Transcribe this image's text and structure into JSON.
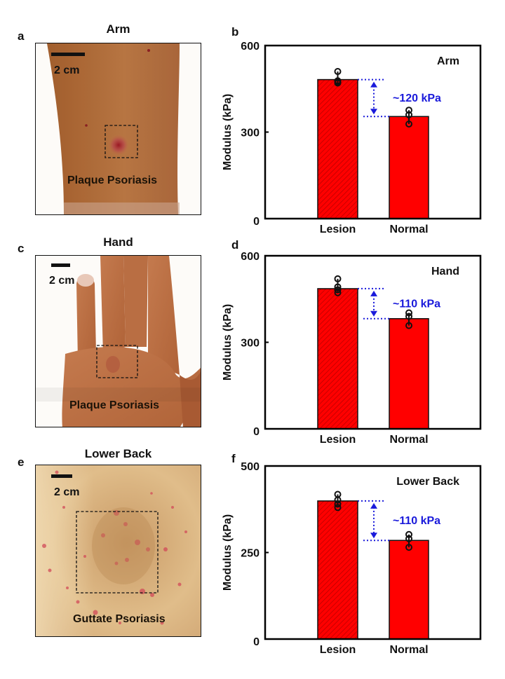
{
  "panels": {
    "a": {
      "letter": "a",
      "title": "Arm",
      "scale_bar": "2 cm",
      "condition": "Plaque Psoriasis"
    },
    "c": {
      "letter": "c",
      "title": "Hand",
      "scale_bar": "2 cm",
      "condition": "Plaque Psoriasis"
    },
    "e": {
      "letter": "e",
      "title": "Lower Back",
      "scale_bar": "2 cm",
      "condition": "Guttate Psoriasis"
    },
    "b": {
      "letter": "b"
    },
    "d": {
      "letter": "d"
    },
    "f": {
      "letter": "f"
    }
  },
  "colors": {
    "bar_fill": "#ff0000",
    "bar_hatch": "#b00000",
    "annotation": "#1a1adb",
    "axis": "#000000"
  },
  "chart_data": [
    {
      "panel": "b",
      "type": "bar",
      "title": "Arm",
      "ylabel": "Modulus (kPa)",
      "xlabel": "",
      "categories": [
        "Lesion",
        "Normal"
      ],
      "values": [
        482,
        354
      ],
      "points": [
        [
          510,
          478,
          474,
          470
        ],
        [
          376,
          360,
          328
        ]
      ],
      "ylim": [
        0,
        600
      ],
      "yticks": [
        0,
        300,
        600
      ],
      "annotation": "~120 kPa",
      "grid": false
    },
    {
      "panel": "d",
      "type": "bar",
      "title": "Hand",
      "ylabel": "Modulus (kPa)",
      "xlabel": "",
      "categories": [
        "Lesion",
        "Normal"
      ],
      "values": [
        486,
        382
      ],
      "points": [
        [
          520,
          492,
          482,
          472
        ],
        [
          402,
          390,
          358
        ]
      ],
      "ylim": [
        0,
        600
      ],
      "yticks": [
        0,
        300,
        600
      ],
      "annotation": "~110 kPa",
      "grid": false
    },
    {
      "panel": "f",
      "type": "bar",
      "title": "Lower Back",
      "ylabel": "Modulus (kPa)",
      "xlabel": "",
      "categories": [
        "Lesion",
        "Normal"
      ],
      "values": [
        399,
        285
      ],
      "points": [
        [
          418,
          402,
          390,
          380
        ],
        [
          302,
          290,
          265
        ]
      ],
      "ylim": [
        0,
        500
      ],
      "yticks": [
        0,
        250,
        500
      ],
      "annotation": "~110 kPa",
      "grid": false
    }
  ]
}
